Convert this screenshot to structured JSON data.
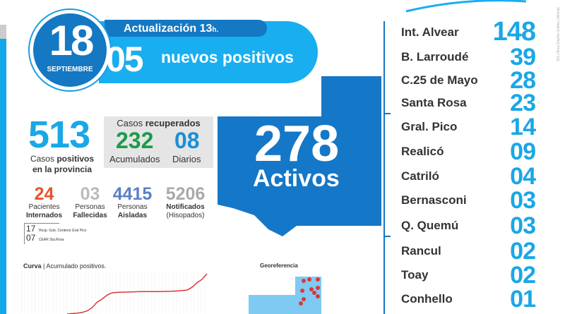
{
  "header": {
    "day": "18",
    "month": "SEPTIEMBRE",
    "update": "Actualización 13",
    "update_suffix": "h.",
    "new_count": "05",
    "new_label": "nuevos positivos"
  },
  "totals": {
    "positive": "513",
    "positive_label_1": "Casos ",
    "positive_label_bold": "positivos",
    "positive_label_2": "en la provincia",
    "recovered_title_1": "Casos ",
    "recovered_title_bold": "recuperados",
    "recovered_acc": "232",
    "recovered_acc_label": "Acumulados",
    "recovered_daily": "08",
    "recovered_daily_label": "Diarios"
  },
  "stats": [
    {
      "value": "24",
      "line1": "Pacientes",
      "line2": "Internados",
      "color": "#e8542a"
    },
    {
      "value": "03",
      "line1": "Personas",
      "line2": "Fallecidas",
      "color": "#bbbbbb"
    },
    {
      "value": "4415",
      "line1": "Personas",
      "line2": "Aisladas",
      "color": "#5b7fc7"
    },
    {
      "value": "5206",
      "line1": "Notificados",
      "line2": "(Hisopados)",
      "color": "#aaaaaa"
    }
  ],
  "hospitals": [
    {
      "value": "17",
      "name": "Hosp. Gob. Centeno Gral Pico"
    },
    {
      "value": "07",
      "name": "CEAR Sta.Rosa"
    }
  ],
  "active": {
    "value": "278",
    "label": "Activos"
  },
  "localities": [
    {
      "name": "Int. Alvear",
      "value": "148"
    },
    {
      "name": "B. Larroudé",
      "value": "39"
    },
    {
      "name": "C.25 de Mayo",
      "value": "28"
    },
    {
      "name": "Santa Rosa",
      "value": "23"
    },
    {
      "name": "Gral. Pico",
      "value": "14"
    },
    {
      "name": "Realicó",
      "value": "09"
    },
    {
      "name": "Catriló",
      "value": "04"
    },
    {
      "name": "Bernasconi",
      "value": "03"
    },
    {
      "name": "Q. Quemú",
      "value": "03"
    },
    {
      "name": "Rancul",
      "value": "02"
    },
    {
      "name": "Toay",
      "value": "02"
    },
    {
      "name": "Conhello",
      "value": "01"
    }
  ],
  "curve": {
    "title_bold": "Curva",
    "title_rest": " | Acumulado positivos."
  },
  "geo": {
    "title": "Georeferencia"
  },
  "credit": "DG | Área Diseño Gráfico | Ministe",
  "chart_data": {
    "type": "line",
    "title": "Curva | Acumulado positivos.",
    "series": [
      {
        "values": [
          0,
          5,
          10,
          20,
          40,
          80,
          150,
          190,
          240,
          270,
          275,
          278,
          280,
          282,
          284,
          285,
          285,
          286,
          286,
          287,
          288,
          290,
          295,
          300,
          305,
          340,
          400,
          440,
          513
        ]
      }
    ]
  },
  "colors": {
    "primary": "#1478c3",
    "accent": "#1aa7e6",
    "line": "#d9383c",
    "recovered": "#1e9a4b"
  }
}
